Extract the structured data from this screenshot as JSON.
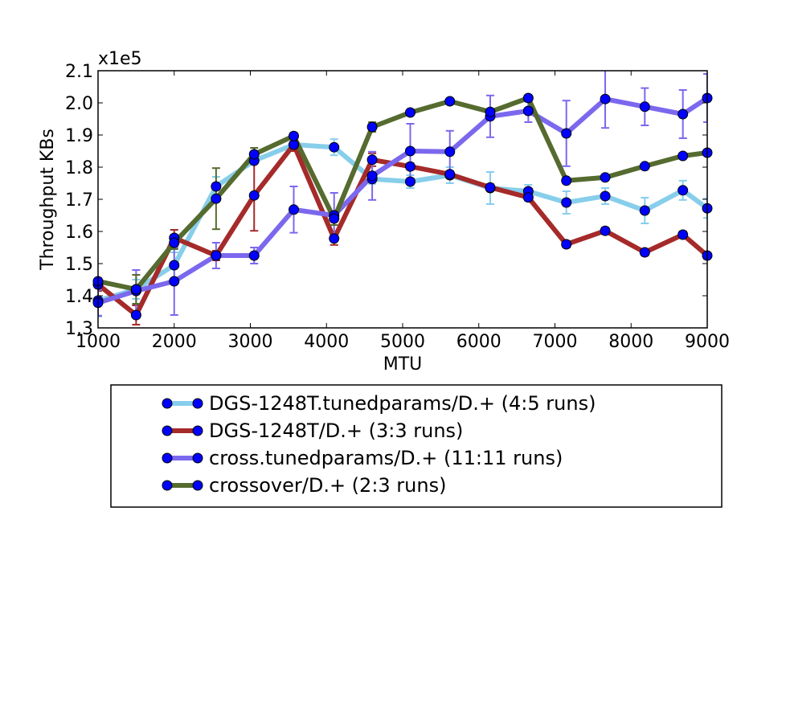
{
  "chart_data": {
    "type": "line",
    "title": "",
    "xlabel": "MTU",
    "ylabel": "Throughput KBs",
    "y_offset_label": "x1e5",
    "xlim": [
      1000,
      9000
    ],
    "ylim": [
      1.3,
      2.1
    ],
    "x_ticks": [
      "1000",
      "2000",
      "3000",
      "4000",
      "5000",
      "6000",
      "7000",
      "8000",
      "9000"
    ],
    "y_ticks": [
      "1.3",
      "1.4",
      "1.5",
      "1.6",
      "1.7",
      "1.8",
      "1.9",
      "2.0",
      "2.1"
    ],
    "grid": false,
    "legend_position": "below plot",
    "marker": "circle",
    "marker_color": "#0000ff",
    "x": [
      1000,
      1500,
      2000,
      2550,
      3050,
      3570,
      4100,
      4600,
      5100,
      5620,
      6150,
      6650,
      7150,
      7660,
      8180,
      8680,
      9000
    ],
    "series": [
      {
        "name": "DGS-1248T.tunedparams/D.+ (4:5 runs)",
        "color": "#87ceeb",
        "values": [
          1.385,
          1.42,
          1.495,
          1.74,
          1.82,
          1.87,
          1.862,
          1.763,
          1.755,
          1.775,
          1.735,
          1.725,
          1.69,
          1.71,
          1.665,
          1.728,
          1.672
        ],
        "errors": [
          0.05,
          0.03,
          0.04,
          0.03,
          0.01,
          0.01,
          0.025,
          0.015,
          0.02,
          0.025,
          0.05,
          0.02,
          0.035,
          0.025,
          0.04,
          0.03,
          0.03
        ]
      },
      {
        "name": "DGS-1248T/D.+ (3:3 runs)",
        "color": "#a52a2a",
        "values": [
          1.435,
          1.34,
          1.58,
          1.525,
          1.712,
          1.87,
          1.578,
          1.823,
          1.802,
          1.778,
          1.737,
          1.706,
          1.56,
          1.602,
          1.535,
          1.59,
          1.525
        ],
        "errors": [
          0.02,
          0.03,
          0.025,
          0.015,
          0.11,
          0.02,
          0.02,
          0.02,
          0.01,
          0.01,
          0.01,
          0.01,
          0.01,
          0.01,
          0.01,
          0.01,
          0.01
        ]
      },
      {
        "name": "cross.tunedparams/D.+ (11:11 runs)",
        "color": "#7b68ee",
        "values": [
          1.378,
          1.415,
          1.445,
          1.525,
          1.525,
          1.668,
          1.65,
          1.773,
          1.85,
          1.848,
          1.958,
          1.975,
          1.905,
          2.012,
          1.988,
          1.965,
          2.015
        ],
        "errors": [
          0.04,
          0.065,
          0.105,
          0.04,
          0.025,
          0.072,
          0.07,
          0.075,
          0.085,
          0.065,
          0.065,
          0.035,
          0.102,
          0.09,
          0.058,
          0.075,
          0.075
        ]
      },
      {
        "name": "crossover/D.+ (2:3 runs)",
        "color": "#556b2f",
        "values": [
          1.445,
          1.42,
          1.565,
          1.702,
          1.84,
          1.897,
          1.64,
          1.925,
          1.97,
          2.005,
          1.972,
          2.015,
          1.758,
          1.768,
          1.803,
          1.835,
          1.845
        ],
        "errors": [
          0.01,
          0.045,
          0.02,
          0.095,
          0.02,
          0.01,
          0.02,
          0.015,
          0.005,
          0.005,
          0.005,
          0.005,
          0.005,
          0.005,
          0.005,
          0.005,
          0.005
        ]
      }
    ]
  }
}
